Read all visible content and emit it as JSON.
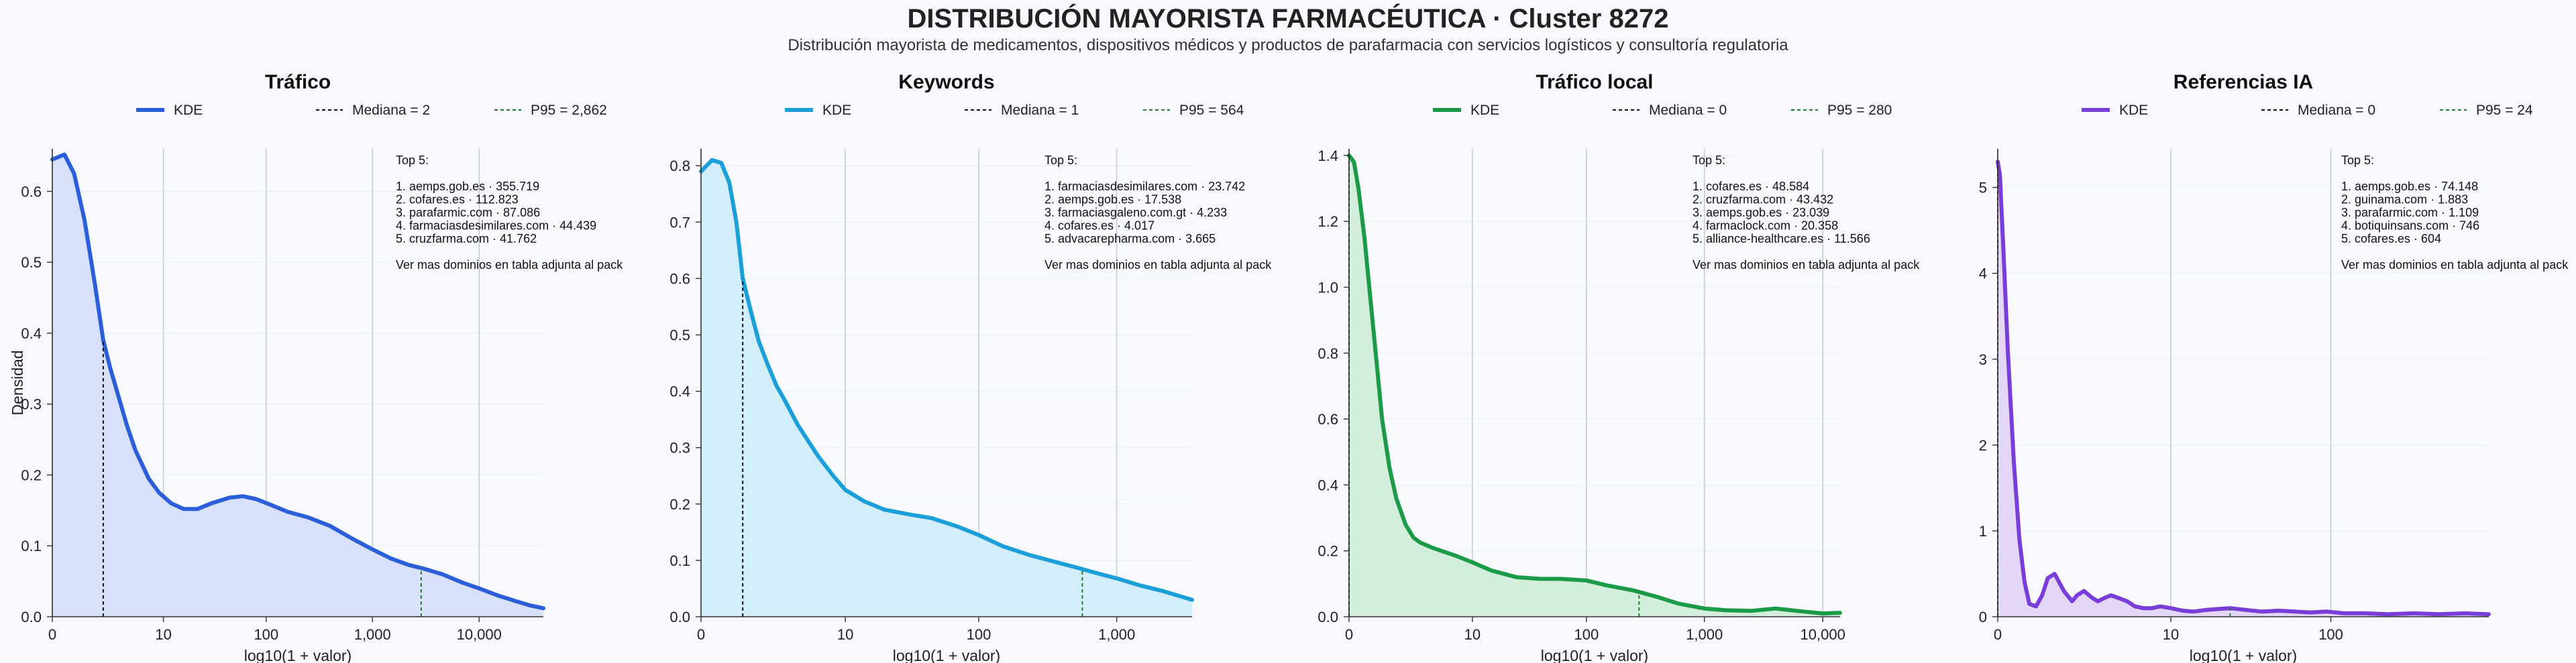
{
  "header": {
    "title": "DISTRIBUCIÓN MAYORISTA FARMACÉUTICA · Cluster 8272",
    "subtitle": "Distribución mayorista de medicamentos, dispositivos médicos y productos de parafarmacia con servicios logísticos y consultoría regulatoria"
  },
  "chart_data": [
    {
      "type": "area",
      "title": "Tráfico",
      "xlabel": "log10(1 + valor)",
      "ylabel": "Densidad",
      "color": "#2b5fd9",
      "fill": "#d7e1fa",
      "x_scale": "log1p",
      "xlim": [
        0,
        40000
      ],
      "ylim": [
        0,
        0.66
      ],
      "yticks": [
        0.0,
        0.1,
        0.2,
        0.3,
        0.4,
        0.5,
        0.6
      ],
      "ytick_labels": [
        "0.0",
        "0.1",
        "0.2",
        "0.3",
        "0.4",
        "0.5",
        "0.6"
      ],
      "xticks": [
        0,
        10,
        100,
        1000,
        10000
      ],
      "xtick_labels": [
        "0",
        "10",
        "100",
        "1,000",
        "10,000"
      ],
      "legend": [
        "KDE",
        "Mediana = 2",
        "P95 = 2,862"
      ],
      "median": 2,
      "p95": 2862,
      "x": [
        0,
        0.3,
        0.6,
        1,
        1.5,
        2,
        2.5,
        3,
        4,
        5,
        7,
        9,
        12,
        16,
        22,
        30,
        45,
        60,
        80,
        110,
        160,
        250,
        400,
        650,
        1000,
        1500,
        2200,
        3000,
        4500,
        7000,
        10000,
        15000,
        22000,
        30000,
        40000
      ],
      "y": [
        0.645,
        0.652,
        0.625,
        0.56,
        0.47,
        0.39,
        0.35,
        0.32,
        0.27,
        0.235,
        0.195,
        0.175,
        0.16,
        0.152,
        0.152,
        0.16,
        0.168,
        0.17,
        0.166,
        0.158,
        0.148,
        0.14,
        0.128,
        0.11,
        0.095,
        0.082,
        0.073,
        0.068,
        0.06,
        0.048,
        0.04,
        0.03,
        0.022,
        0.016,
        0.012
      ],
      "annotation": {
        "header": "Top 5:",
        "items": [
          "1. aemps.gob.es · 355.719",
          "2. cofares.es · 112.823",
          "3. parafarmic.com · 87.086",
          "4. farmaciasdesimilares.com · 44.439",
          "5. cruzfarma.com · 41.762"
        ],
        "footer": "Ver mas dominios en tabla adjunta al pack"
      }
    },
    {
      "type": "area",
      "title": "Keywords",
      "xlabel": "log10(1 + valor)",
      "ylabel": "",
      "color": "#1b9fd8",
      "fill": "#d2eefb",
      "x_scale": "log1p",
      "xlim": [
        0,
        3500
      ],
      "ylim": [
        0,
        0.83
      ],
      "yticks": [
        0.0,
        0.1,
        0.2,
        0.3,
        0.4,
        0.5,
        0.6,
        0.7,
        0.8
      ],
      "ytick_labels": [
        "0.0",
        "0.1",
        "0.2",
        "0.3",
        "0.4",
        "0.5",
        "0.6",
        "0.7",
        "0.8"
      ],
      "xticks": [
        0,
        10,
        100,
        1000
      ],
      "xtick_labels": [
        "0",
        "10",
        "100",
        "1,000"
      ],
      "legend": [
        "KDE",
        "Mediana = 1",
        "P95 = 564"
      ],
      "median": 1,
      "p95": 564,
      "x": [
        0,
        0.2,
        0.4,
        0.6,
        0.8,
        1,
        1.3,
        1.6,
        2,
        2.5,
        3,
        4,
        5,
        6,
        8,
        10,
        14,
        20,
        30,
        45,
        70,
        100,
        150,
        230,
        350,
        500,
        700,
        1000,
        1500,
        2200,
        3500
      ],
      "y": [
        0.79,
        0.81,
        0.805,
        0.77,
        0.7,
        0.6,
        0.54,
        0.49,
        0.45,
        0.41,
        0.385,
        0.34,
        0.31,
        0.285,
        0.25,
        0.225,
        0.205,
        0.19,
        0.182,
        0.175,
        0.16,
        0.145,
        0.125,
        0.11,
        0.098,
        0.088,
        0.078,
        0.068,
        0.055,
        0.045,
        0.03
      ],
      "annotation": {
        "header": "Top 5:",
        "items": [
          "1. farmaciasdesimilares.com · 23.742",
          "2. aemps.gob.es · 17.538",
          "3. farmaciasgaleno.com.gt · 4.233",
          "4. cofares.es · 4.017",
          "5. advacarepharma.com · 3.665"
        ],
        "footer": "Ver mas dominios en tabla adjunta al pack"
      }
    },
    {
      "type": "area",
      "title": "Tráfico local",
      "xlabel": "log10(1 + valor)",
      "ylabel": "",
      "color": "#1b9a48",
      "fill": "#d4eedc",
      "x_scale": "log1p",
      "xlim": [
        0,
        14000
      ],
      "ylim": [
        0,
        1.42
      ],
      "yticks": [
        0.0,
        0.2,
        0.4,
        0.6,
        0.8,
        1.0,
        1.2,
        1.4
      ],
      "ytick_labels": [
        "0.0",
        "0.2",
        "0.4",
        "0.6",
        "0.8",
        "1.0",
        "1.2",
        "1.4"
      ],
      "xticks": [
        0,
        10,
        100,
        1000,
        10000
      ],
      "xtick_labels": [
        "0",
        "10",
        "100",
        "1,000",
        "10,000"
      ],
      "legend": [
        "KDE",
        "Mediana = 0",
        "P95 = 280"
      ],
      "median": 0,
      "p95": 280,
      "x": [
        0,
        0.1,
        0.2,
        0.35,
        0.5,
        0.7,
        0.9,
        1.2,
        1.5,
        2,
        2.5,
        3,
        4,
        5,
        7,
        10,
        15,
        25,
        40,
        60,
        100,
        150,
        250,
        400,
        600,
        1000,
        1500,
        2500,
        4000,
        6000,
        10000,
        14000
      ],
      "y": [
        1.4,
        1.38,
        1.3,
        1.15,
        0.98,
        0.78,
        0.6,
        0.45,
        0.36,
        0.28,
        0.24,
        0.225,
        0.21,
        0.2,
        0.185,
        0.165,
        0.14,
        0.12,
        0.115,
        0.115,
        0.11,
        0.095,
        0.08,
        0.06,
        0.04,
        0.025,
        0.02,
        0.018,
        0.025,
        0.018,
        0.01,
        0.012
      ],
      "annotation": {
        "header": "Top 5:",
        "items": [
          "1. cofares.es · 48.584",
          "2. cruzfarma.com · 43.432",
          "3. aemps.gob.es · 23.039",
          "4. farmaclock.com · 20.358",
          "5. alliance-healthcare.es · 11.566"
        ],
        "footer": "Ver mas dominios en tabla adjunta al pack"
      }
    },
    {
      "type": "area",
      "title": "Referencias IA",
      "xlabel": "log10(1 + valor)",
      "ylabel": "",
      "color": "#7a3ed8",
      "fill": "#e4d6f6",
      "x_scale": "log1p",
      "xlim": [
        0,
        900
      ],
      "ylim": [
        0,
        5.45
      ],
      "yticks": [
        0,
        1,
        2,
        3,
        4,
        5
      ],
      "ytick_labels": [
        "0",
        "1",
        "2",
        "3",
        "4",
        "5"
      ],
      "xticks": [
        0,
        10,
        100
      ],
      "xtick_labels": [
        "0",
        "10",
        "100"
      ],
      "legend": [
        "KDE",
        "Mediana = 0",
        "P95 = 24"
      ],
      "median": 0,
      "p95": 24,
      "x": [
        0,
        0.03,
        0.08,
        0.15,
        0.25,
        0.35,
        0.45,
        0.55,
        0.7,
        0.85,
        1,
        1.2,
        1.5,
        1.8,
        2,
        2.3,
        2.7,
        3,
        3.4,
        3.8,
        4.3,
        5,
        5.7,
        6.5,
        7.5,
        8.5,
        10,
        12,
        14,
        17,
        20,
        24,
        30,
        38,
        48,
        60,
        75,
        95,
        120,
        160,
        220,
        320,
        450,
        650,
        900
      ],
      "y": [
        5.3,
        5.15,
        4.3,
        3.1,
        1.8,
        0.9,
        0.4,
        0.15,
        0.12,
        0.25,
        0.45,
        0.5,
        0.3,
        0.18,
        0.25,
        0.3,
        0.22,
        0.18,
        0.22,
        0.25,
        0.22,
        0.18,
        0.12,
        0.1,
        0.1,
        0.12,
        0.1,
        0.07,
        0.06,
        0.08,
        0.09,
        0.1,
        0.08,
        0.06,
        0.07,
        0.06,
        0.05,
        0.06,
        0.04,
        0.04,
        0.03,
        0.04,
        0.03,
        0.04,
        0.03
      ],
      "annotation": {
        "header": "Top 5:",
        "items": [
          "1. aemps.gob.es · 74.148",
          "2. guinama.com · 1.883",
          "3. parafarmic.com · 1.109",
          "4. botiquinsans.com · 746",
          "5. cofares.es · 604"
        ],
        "footer": "Ver mas dominios en tabla adjunta al pack"
      }
    }
  ]
}
